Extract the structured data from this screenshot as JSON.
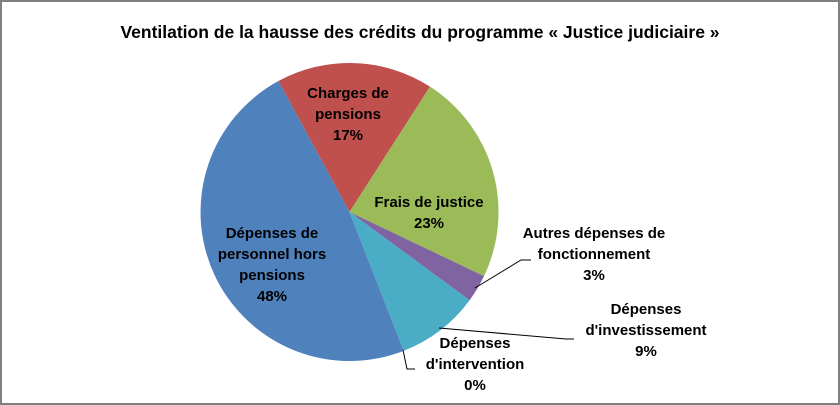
{
  "window": {
    "background": "#FFFFFF",
    "border_color": "#808080"
  },
  "chart_data": {
    "type": "pie",
    "title": "Ventilation de la hausse des crédits du programme « Justice judiciaire »",
    "legend": "none",
    "data_labels": "category name + percentage",
    "start_angle_deg": -28.5,
    "direction": "clockwise",
    "slices": [
      {
        "name": "charges-de-pensions",
        "label": "Charges de pensions",
        "value_pct": 17,
        "color": "#C0504D",
        "display": "Charges de\npensions\n17%"
      },
      {
        "name": "frais-de-justice",
        "label": "Frais de justice",
        "value_pct": 23,
        "color": "#9BBB59",
        "display": "Frais de justice\n23%"
      },
      {
        "name": "autres-depenses-de-fonctionnement",
        "label": "Autres dépenses de fonctionnement",
        "value_pct": 3,
        "color": "#8064A2",
        "display": "Autres dépenses de\nfonctionnement\n3%"
      },
      {
        "name": "depenses-d-investissement",
        "label": "Dépenses d'investissement",
        "value_pct": 9,
        "color": "#4BACC6",
        "display": "Dépenses\nd'investissement\n9%"
      },
      {
        "name": "depenses-d-intervention",
        "label": "Dépenses d'intervention",
        "value_pct": 0,
        "color": null,
        "display": "Dépenses\nd'intervention\n0%"
      },
      {
        "name": "depenses-de-personnel-hors-pensions",
        "label": "Dépenses de personnel hors pensions",
        "value_pct": 48,
        "color": "#4F81BD",
        "display": "Dépenses de\npersonnel hors\npensions\n48%"
      }
    ]
  }
}
